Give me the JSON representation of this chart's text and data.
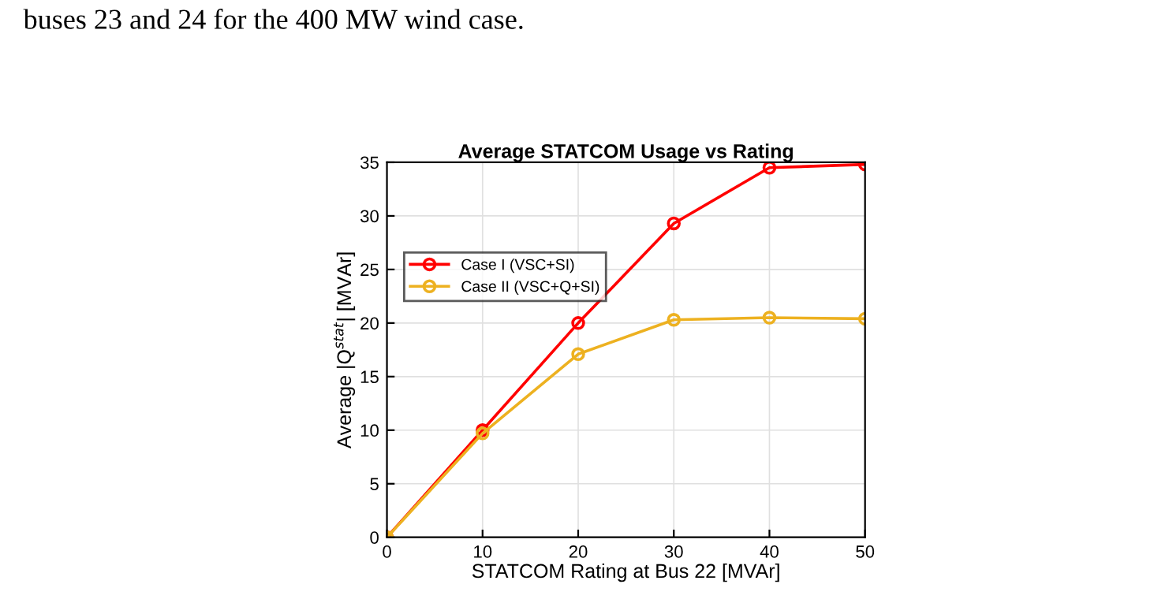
{
  "chart_data": {
    "type": "line",
    "title": "Average STATCOM Usage vs Rating",
    "xlabel": "STATCOM Rating at Bus 22 [MVAr]",
    "ylabel": "Average |Q$^{stat}$| [MVAr]",
    "annotations": [
      "buses 23 and 24 for the 400 MW wind case."
    ],
    "x": [
      0,
      10,
      20,
      30,
      40,
      50
    ],
    "series": [
      {
        "name": "Case I (VSC+SI)",
        "color": "#ff0000",
        "values": [
          0,
          10,
          20,
          29.3,
          34.5,
          34.8
        ]
      },
      {
        "name": "Case II (VSC+Q+SI)",
        "color": "#edb120",
        "values": [
          0,
          9.7,
          17.1,
          20.3,
          20.5,
          20.4
        ]
      }
    ],
    "xlim": [
      0,
      50
    ],
    "ylim": [
      0,
      35
    ],
    "xticks": [
      0,
      10,
      20,
      30,
      40,
      50
    ],
    "yticks": [
      0,
      5,
      10,
      15,
      20,
      25,
      30,
      35
    ],
    "grid": true,
    "legend": "top left",
    "marker": "circle",
    "line_style": "solid"
  }
}
